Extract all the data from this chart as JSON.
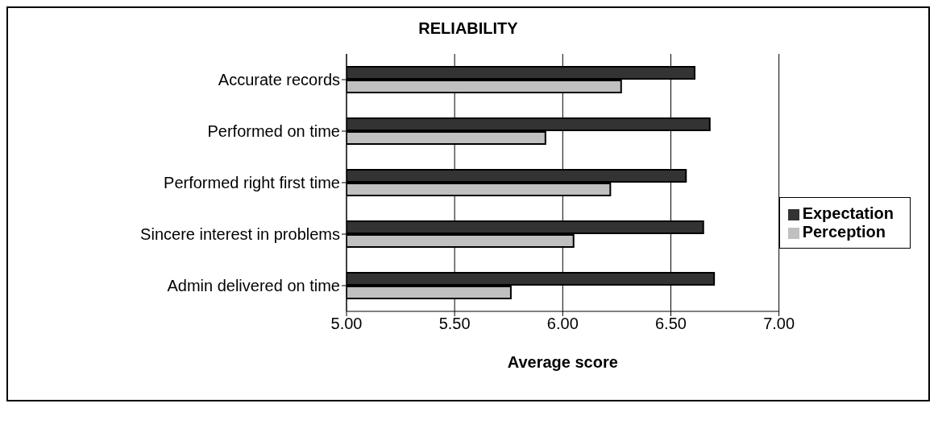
{
  "chart_data": {
    "type": "bar",
    "orientation": "horizontal",
    "title": "RELIABILITY",
    "xlabel": "Average score",
    "categories": [
      "Accurate records",
      "Performed on time",
      "Performed right first time",
      "Sincere interest in problems",
      "Admin delivered on time"
    ],
    "series": [
      {
        "name": "Expectation",
        "color": "#333333",
        "values": [
          6.61,
          6.68,
          6.57,
          6.65,
          6.7
        ]
      },
      {
        "name": "Perception",
        "color": "#c0c0c0",
        "values": [
          6.27,
          5.92,
          6.22,
          6.05,
          5.76
        ]
      }
    ],
    "xlim": [
      5,
      7
    ],
    "xticks": [
      {
        "value": 5,
        "label": "5.00"
      },
      {
        "value": 5.5,
        "label": "5.50"
      },
      {
        "value": 6,
        "label": "6.00"
      },
      {
        "value": 6.5,
        "label": "6.50"
      },
      {
        "value": 7,
        "label": "7.00"
      }
    ],
    "grid": "x",
    "legend": "right"
  }
}
